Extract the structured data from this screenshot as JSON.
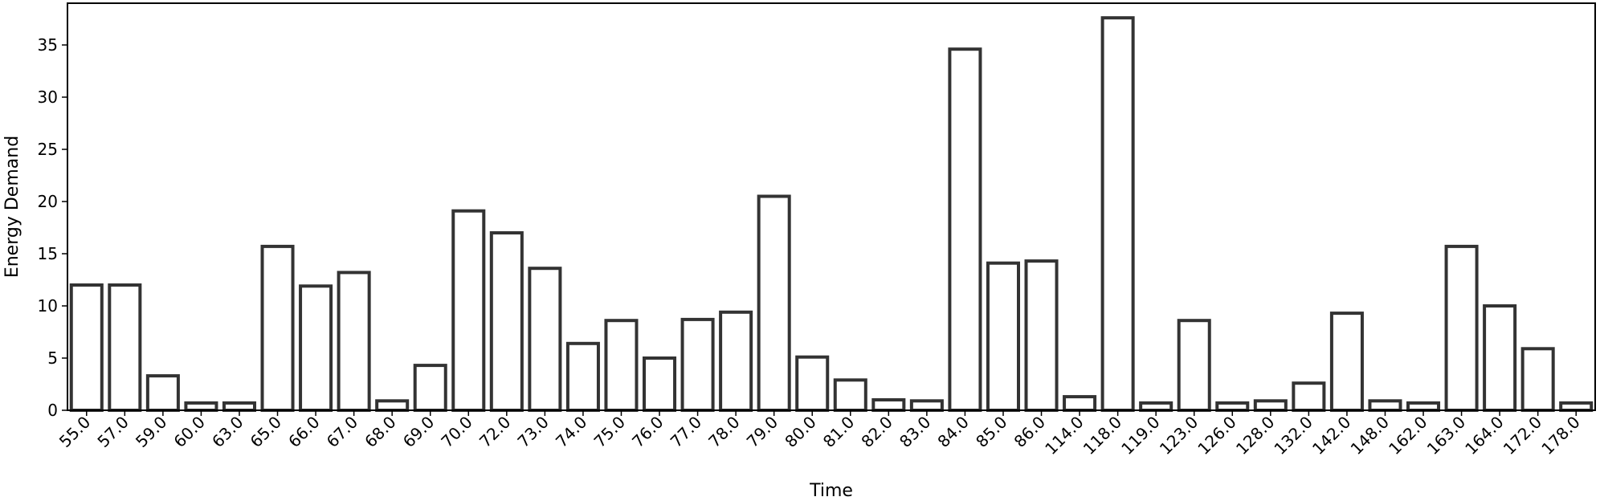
{
  "chart_data": {
    "type": "bar",
    "title": "",
    "xlabel": "Time",
    "ylabel": "Energy Demand",
    "ylim": [
      0,
      39
    ],
    "yticks": [
      0,
      5,
      10,
      15,
      20,
      25,
      30,
      35
    ],
    "grid": false,
    "legend": "none",
    "categories": [
      "55.0",
      "57.0",
      "59.0",
      "60.0",
      "63.0",
      "65.0",
      "66.0",
      "67.0",
      "68.0",
      "69.0",
      "70.0",
      "72.0",
      "73.0",
      "74.0",
      "75.0",
      "76.0",
      "77.0",
      "78.0",
      "79.0",
      "80.0",
      "81.0",
      "82.0",
      "83.0",
      "84.0",
      "85.0",
      "86.0",
      "114.0",
      "118.0",
      "119.0",
      "123.0",
      "126.0",
      "128.0",
      "132.0",
      "142.0",
      "148.0",
      "162.0",
      "163.0",
      "164.0",
      "172.0",
      "178.0"
    ],
    "values": [
      12.0,
      12.0,
      3.3,
      0.7,
      0.7,
      15.7,
      11.9,
      13.2,
      0.9,
      4.3,
      19.1,
      17.0,
      13.6,
      6.4,
      8.6,
      5.0,
      8.7,
      9.4,
      20.5,
      5.1,
      2.9,
      1.0,
      0.9,
      34.6,
      14.1,
      14.3,
      1.3,
      37.6,
      0.7,
      8.6,
      0.7,
      0.9,
      2.6,
      9.3,
      0.9,
      0.7,
      15.7,
      10.0,
      5.9,
      0.7
    ],
    "colors": {
      "bar_fill": "#ffffff",
      "bar_edge": "#333333",
      "axis": "#000000",
      "text": "#000000"
    }
  }
}
